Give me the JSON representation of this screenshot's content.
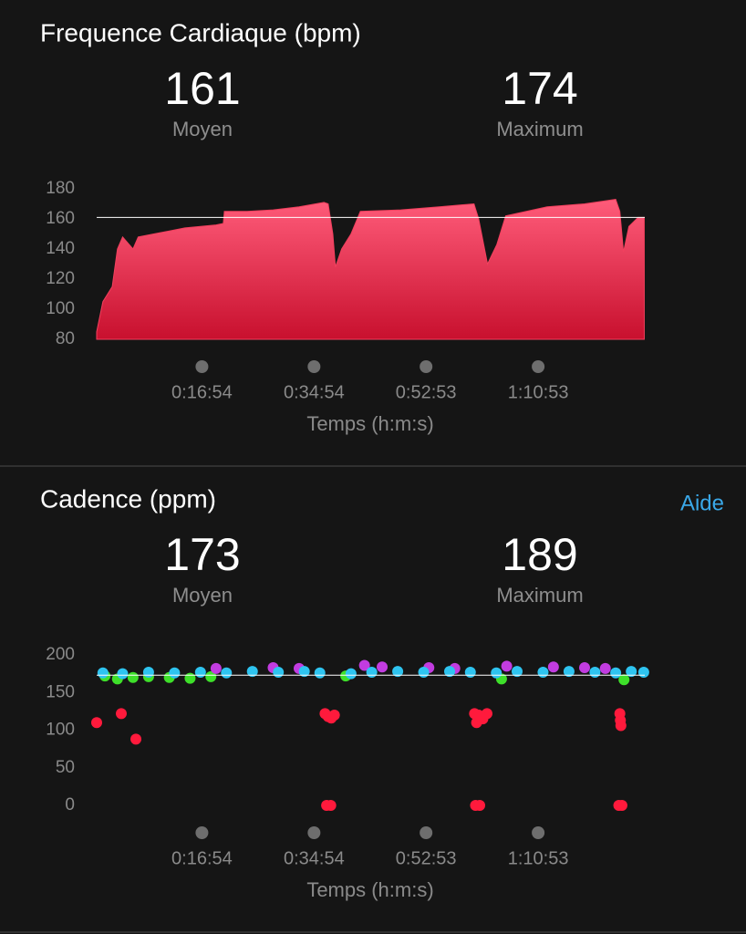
{
  "chart_data": [
    {
      "type": "area",
      "title": "Frequence Cardiaque (bpm)",
      "stats": [
        {
          "value": 161,
          "label": "Moyen"
        },
        {
          "value": 174,
          "label": "Maximum"
        }
      ],
      "x": [
        0,
        60,
        150,
        200,
        250,
        350,
        400,
        550,
        700,
        850,
        1000,
        1150,
        1220,
        1230,
        1450,
        1700,
        1950,
        2190,
        2230,
        2275,
        2300,
        2360,
        2450,
        2540,
        2930,
        3300,
        3635,
        3680,
        3765,
        3855,
        3940,
        4340,
        4700,
        5000,
        5040,
        5075,
        5127,
        5215,
        5275
      ],
      "values": [
        85,
        105,
        115,
        140,
        148,
        140,
        148,
        150,
        152,
        154,
        155,
        156,
        157,
        165,
        165,
        166,
        168,
        171,
        170,
        150,
        128,
        140,
        150,
        165,
        166,
        168,
        170,
        160,
        130,
        143,
        162,
        168,
        170,
        173,
        165,
        138,
        155,
        161,
        161
      ],
      "color": "#f2405e",
      "xlim": [
        0,
        5280
      ],
      "xticks": [
        {
          "value": 1014,
          "label": "0:16:54"
        },
        {
          "value": 2094,
          "label": "0:34:54"
        },
        {
          "value": 3173,
          "label": "0:52:53"
        },
        {
          "value": 4253,
          "label": "1:10:53"
        }
      ],
      "ylim": [
        80,
        180
      ],
      "yticks": [
        80,
        100,
        120,
        140,
        160,
        180
      ],
      "xlabel": "Temps (h:m:s)"
    },
    {
      "type": "scatter",
      "title": "Cadence (ppm)",
      "link": "Aide",
      "stats": [
        {
          "value": 173,
          "label": "Moyen"
        },
        {
          "value": 189,
          "label": "Maximum"
        }
      ],
      "series": [
        {
          "color": "#3ee02a",
          "x": [
            80,
            200,
            350,
            500,
            700,
            900,
            1100,
            2400,
            3900,
            5080
          ],
          "values": [
            172,
            168,
            170,
            171,
            170,
            169,
            171,
            172,
            168,
            167
          ]
        },
        {
          "color": "#c23ce0",
          "x": [
            1150,
            1700,
            1950,
            2580,
            2750,
            3200,
            3450,
            3950,
            4400,
            4700,
            4900
          ],
          "values": [
            182,
            183,
            182,
            186,
            184,
            183,
            182,
            185,
            184,
            183,
            182
          ]
        },
        {
          "color": "#2ec4f0",
          "x": [
            60,
            250,
            500,
            750,
            1000,
            1250,
            1500,
            1750,
            2000,
            2150,
            2450,
            2650,
            2900,
            3150,
            3400,
            3600,
            3850,
            4050,
            4300,
            4550,
            4800,
            5000,
            5150,
            5270
          ],
          "values": [
            176,
            175,
            177,
            176,
            177,
            176,
            178,
            177,
            178,
            176,
            175,
            177,
            178,
            177,
            178,
            177,
            176,
            178,
            177,
            178,
            177,
            176,
            178,
            177
          ]
        },
        {
          "color": "#ff1a3c",
          "x": [
            0,
            237,
            378,
            2200,
            2230,
            2260,
            2290,
            2215,
            2255,
            3640,
            3680,
            3720,
            3760,
            3660,
            3700,
            3650,
            3690,
            5040,
            5045,
            5050,
            5030,
            5060
          ],
          "values": [
            110,
            122,
            88,
            122,
            118,
            116,
            120,
            0,
            0,
            122,
            120,
            115,
            122,
            110,
            118,
            0,
            0,
            122,
            113,
            106,
            0,
            0
          ]
        }
      ],
      "xlim": [
        0,
        5280
      ],
      "xticks": [
        {
          "value": 1014,
          "label": "0:16:54"
        },
        {
          "value": 2094,
          "label": "0:34:54"
        },
        {
          "value": 3173,
          "label": "0:52:53"
        },
        {
          "value": 4253,
          "label": "1:10:53"
        }
      ],
      "ylim": [
        0,
        200
      ],
      "yticks": [
        0,
        50,
        100,
        150,
        200
      ],
      "xlabel": "Temps (h:m:s)"
    }
  ]
}
